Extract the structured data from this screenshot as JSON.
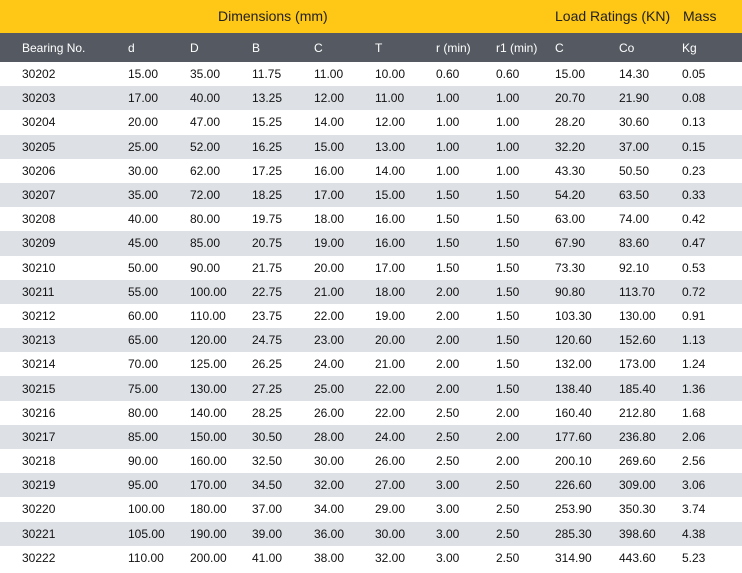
{
  "banner": {
    "dimensions": "Dimensions (mm)",
    "load_ratings": "Load Ratings (KN)",
    "mass": "Mass"
  },
  "table": {
    "headers": [
      "Bearing No.",
      "d",
      "D",
      "B",
      "C",
      "T",
      "r (min)",
      "r1 (min)",
      "C",
      "Co",
      "Kg"
    ],
    "rows": [
      [
        "30202",
        "15.00",
        "35.00",
        "11.75",
        "11.00",
        "10.00",
        "0.60",
        "0.60",
        "15.00",
        "14.30",
        "0.05"
      ],
      [
        "30203",
        "17.00",
        "40.00",
        "13.25",
        "12.00",
        "11.00",
        "1.00",
        "1.00",
        "20.70",
        "21.90",
        "0.08"
      ],
      [
        "30204",
        "20.00",
        "47.00",
        "15.25",
        "14.00",
        "12.00",
        "1.00",
        "1.00",
        "28.20",
        "30.60",
        "0.13"
      ],
      [
        "30205",
        "25.00",
        "52.00",
        "16.25",
        "15.00",
        "13.00",
        "1.00",
        "1.00",
        "32.20",
        "37.00",
        "0.15"
      ],
      [
        "30206",
        "30.00",
        "62.00",
        "17.25",
        "16.00",
        "14.00",
        "1.00",
        "1.00",
        "43.30",
        "50.50",
        "0.23"
      ],
      [
        "30207",
        "35.00",
        "72.00",
        "18.25",
        "17.00",
        "15.00",
        "1.50",
        "1.50",
        "54.20",
        "63.50",
        "0.33"
      ],
      [
        "30208",
        "40.00",
        "80.00",
        "19.75",
        "18.00",
        "16.00",
        "1.50",
        "1.50",
        "63.00",
        "74.00",
        "0.42"
      ],
      [
        "30209",
        "45.00",
        "85.00",
        "20.75",
        "19.00",
        "16.00",
        "1.50",
        "1.50",
        "67.90",
        "83.60",
        "0.47"
      ],
      [
        "30210",
        "50.00",
        "90.00",
        "21.75",
        "20.00",
        "17.00",
        "1.50",
        "1.50",
        "73.30",
        "92.10",
        "0.53"
      ],
      [
        "30211",
        "55.00",
        "100.00",
        "22.75",
        "21.00",
        "18.00",
        "2.00",
        "1.50",
        "90.80",
        "113.70",
        "0.72"
      ],
      [
        "30212",
        "60.00",
        "110.00",
        "23.75",
        "22.00",
        "19.00",
        "2.00",
        "1.50",
        "103.30",
        "130.00",
        "0.91"
      ],
      [
        "30213",
        "65.00",
        "120.00",
        "24.75",
        "23.00",
        "20.00",
        "2.00",
        "1.50",
        "120.60",
        "152.60",
        "1.13"
      ],
      [
        "30214",
        "70.00",
        "125.00",
        "26.25",
        "24.00",
        "21.00",
        "2.00",
        "1.50",
        "132.00",
        "173.00",
        "1.24"
      ],
      [
        "30215",
        "75.00",
        "130.00",
        "27.25",
        "25.00",
        "22.00",
        "2.00",
        "1.50",
        "138.40",
        "185.40",
        "1.36"
      ],
      [
        "30216",
        "80.00",
        "140.00",
        "28.25",
        "26.00",
        "22.00",
        "2.50",
        "2.00",
        "160.40",
        "212.80",
        "1.68"
      ],
      [
        "30217",
        "85.00",
        "150.00",
        "30.50",
        "28.00",
        "24.00",
        "2.50",
        "2.00",
        "177.60",
        "236.80",
        "2.06"
      ],
      [
        "30218",
        "90.00",
        "160.00",
        "32.50",
        "30.00",
        "26.00",
        "2.50",
        "2.00",
        "200.10",
        "269.60",
        "2.56"
      ],
      [
        "30219",
        "95.00",
        "170.00",
        "34.50",
        "32.00",
        "27.00",
        "3.00",
        "2.50",
        "226.60",
        "309.00",
        "3.06"
      ],
      [
        "30220",
        "100.00",
        "180.00",
        "37.00",
        "34.00",
        "29.00",
        "3.00",
        "2.50",
        "253.90",
        "350.30",
        "3.74"
      ],
      [
        "30221",
        "105.00",
        "190.00",
        "39.00",
        "36.00",
        "30.00",
        "3.00",
        "2.50",
        "285.30",
        "398.60",
        "4.38"
      ],
      [
        "30222",
        "110.00",
        "200.00",
        "41.00",
        "38.00",
        "32.00",
        "3.00",
        "2.50",
        "314.90",
        "443.60",
        "5.23"
      ]
    ]
  }
}
